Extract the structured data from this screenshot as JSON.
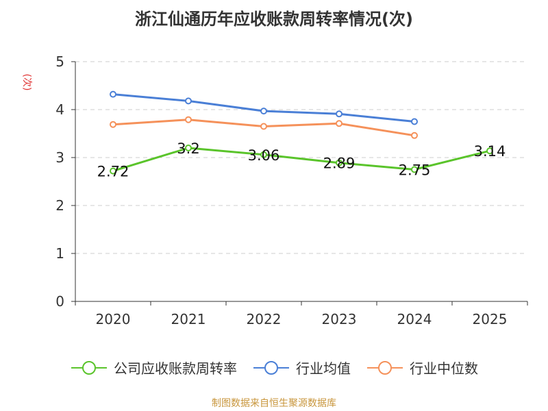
{
  "chart_data": {
    "type": "line",
    "title": "浙江仙通历年应收账款周转率情况(次)",
    "ylabel": "(次)",
    "categories": [
      "2020",
      "2021",
      "2022",
      "2023",
      "2024",
      "2025"
    ],
    "ylim": [
      0,
      5
    ],
    "yticks": [
      0,
      1,
      2,
      3,
      4,
      5
    ],
    "grid": true,
    "legend_position": "bottom",
    "series": [
      {
        "name": "公司应收账款周转率",
        "color": "#5ac42b",
        "labels": true,
        "values": [
          2.72,
          3.2,
          3.06,
          2.89,
          2.75,
          3.14
        ],
        "label_text": [
          "2.72",
          "3.2",
          "3.06",
          "2.89",
          "2.75",
          "3.14"
        ]
      },
      {
        "name": "行业均值",
        "color": "#4a7fd6",
        "labels": false,
        "values": [
          4.32,
          4.18,
          3.97,
          3.91,
          3.75,
          null
        ]
      },
      {
        "name": "行业中位数",
        "color": "#f5915a",
        "labels": false,
        "values": [
          3.69,
          3.79,
          3.65,
          3.71,
          3.46,
          null
        ]
      }
    ]
  },
  "source": "制图数据来自恒生聚源数据库"
}
